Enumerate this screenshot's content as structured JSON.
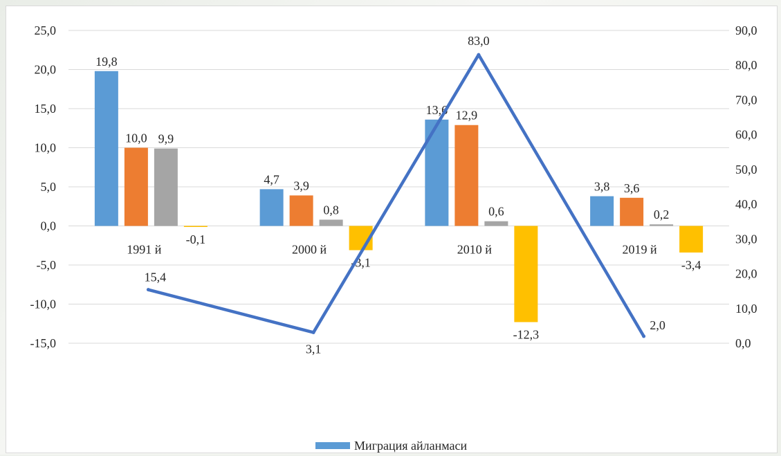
{
  "chart_data": {
    "type": "bar",
    "categories": [
      "1991 й",
      "2000 й",
      "2010 й",
      "2019 й"
    ],
    "series": [
      {
        "values": [
          19.8,
          4.7,
          13.6,
          3.8
        ],
        "color": "#5b9bd5",
        "axis": "left",
        "kind": "bar"
      },
      {
        "values": [
          10.0,
          3.9,
          12.9,
          3.6
        ],
        "color": "#ed7d31",
        "axis": "left",
        "kind": "bar"
      },
      {
        "values": [
          9.9,
          0.8,
          0.6,
          0.2
        ],
        "color": "#a5a5a5",
        "axis": "left",
        "kind": "bar"
      },
      {
        "values": [
          -0.1,
          -3.1,
          -12.3,
          -3.4
        ],
        "color": "#ffc000",
        "axis": "left",
        "kind": "bar"
      },
      {
        "name": "Миграция айланмаси",
        "values": [
          15.4,
          3.1,
          83.0,
          2.0
        ],
        "color": "#4472c4",
        "axis": "right",
        "kind": "line"
      }
    ],
    "bar_labels": [
      [
        "19,8",
        "4,7",
        "13,6",
        "3,8"
      ],
      [
        "10,0",
        "3,9",
        "12,9",
        "3,6"
      ],
      [
        "9,9",
        "0,8",
        "0,6",
        "0,2"
      ],
      [
        "-0,1",
        "-3,1",
        "-12,3",
        "-3,4"
      ]
    ],
    "line_labels": [
      "15,4",
      "3,1",
      "83,0",
      "2,0"
    ],
    "ylim": [
      -15,
      25
    ],
    "y2lim": [
      0,
      90
    ],
    "yticks": [
      "25,0",
      "20,0",
      "15,0",
      "10,0",
      "5,0",
      "0,0",
      "-5,0",
      "-10,0",
      "-15,0"
    ],
    "y2ticks": [
      "90,0",
      "80,0",
      "70,0",
      "60,0",
      "50,0",
      "40,0",
      "30,0",
      "20,0",
      "10,0",
      "0,0"
    ],
    "grid": true,
    "legend": {
      "position": "bottom",
      "label": "Миграция айланмаси",
      "color": "#5b9bd5"
    }
  }
}
